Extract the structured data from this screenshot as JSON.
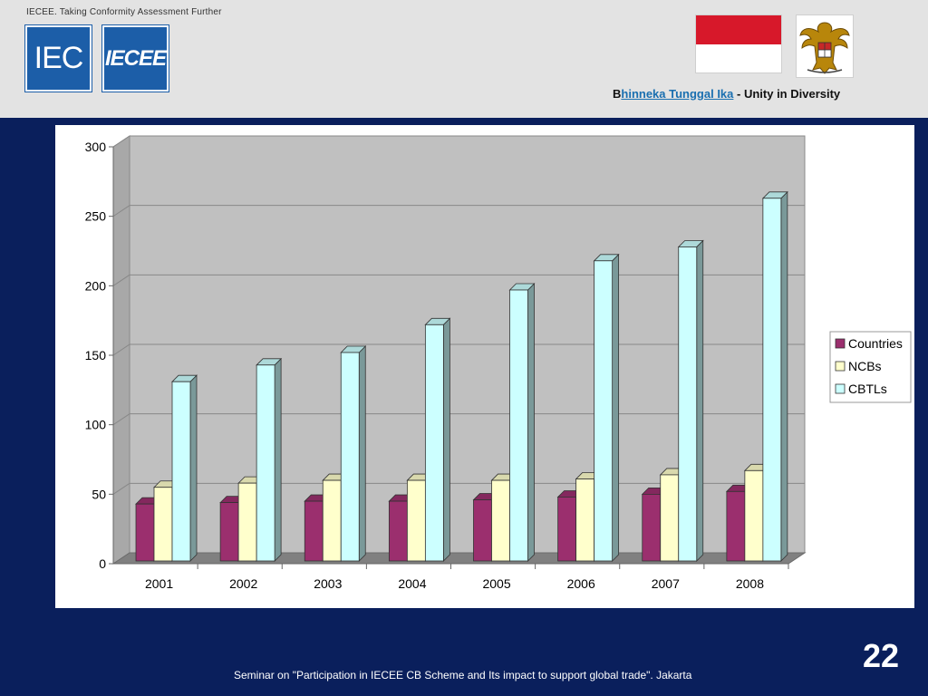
{
  "header": {
    "tagline": "IECEE. Taking Conformity Assessment Further",
    "logo_iec": "IEC",
    "logo_iecee": "IECEE",
    "motto_prefix": "B",
    "motto_link": "hinneka Tunggal Ika",
    "motto_suffix": " - Unity in Diversity"
  },
  "footer": {
    "caption": "Seminar on \"Participation in IECEE CB Scheme and Its impact to support global trade\". Jakarta",
    "page_number": "22"
  },
  "colors": {
    "slide_bg": "#0a1f5c",
    "countries": "#9b2f6e",
    "ncbs": "#ffffcc",
    "cbtls": "#ccffff",
    "plot_bg": "#c0c0c0",
    "floor": "#808080"
  },
  "icons": [
    "iec-logo",
    "iecee-logo",
    "indonesia-flag-icon",
    "garuda-emblem-icon"
  ],
  "chart_data": {
    "type": "bar",
    "title": "",
    "xlabel": "",
    "ylabel": "",
    "categories": [
      "2001",
      "2002",
      "2003",
      "2004",
      "2005",
      "2006",
      "2007",
      "2008"
    ],
    "series": [
      {
        "name": "Countries",
        "values": [
          41,
          42,
          43,
          43,
          44,
          46,
          48,
          50
        ]
      },
      {
        "name": "NCBs",
        "values": [
          53,
          56,
          58,
          58,
          58,
          59,
          62,
          65
        ]
      },
      {
        "name": "CBTLs",
        "values": [
          129,
          141,
          150,
          170,
          195,
          216,
          226,
          261
        ]
      }
    ],
    "ylim": [
      0,
      300
    ],
    "yticks": [
      "0",
      "50",
      "100",
      "150",
      "200",
      "250",
      "300"
    ],
    "grid": true,
    "three_d": true,
    "legend_position": "right"
  }
}
